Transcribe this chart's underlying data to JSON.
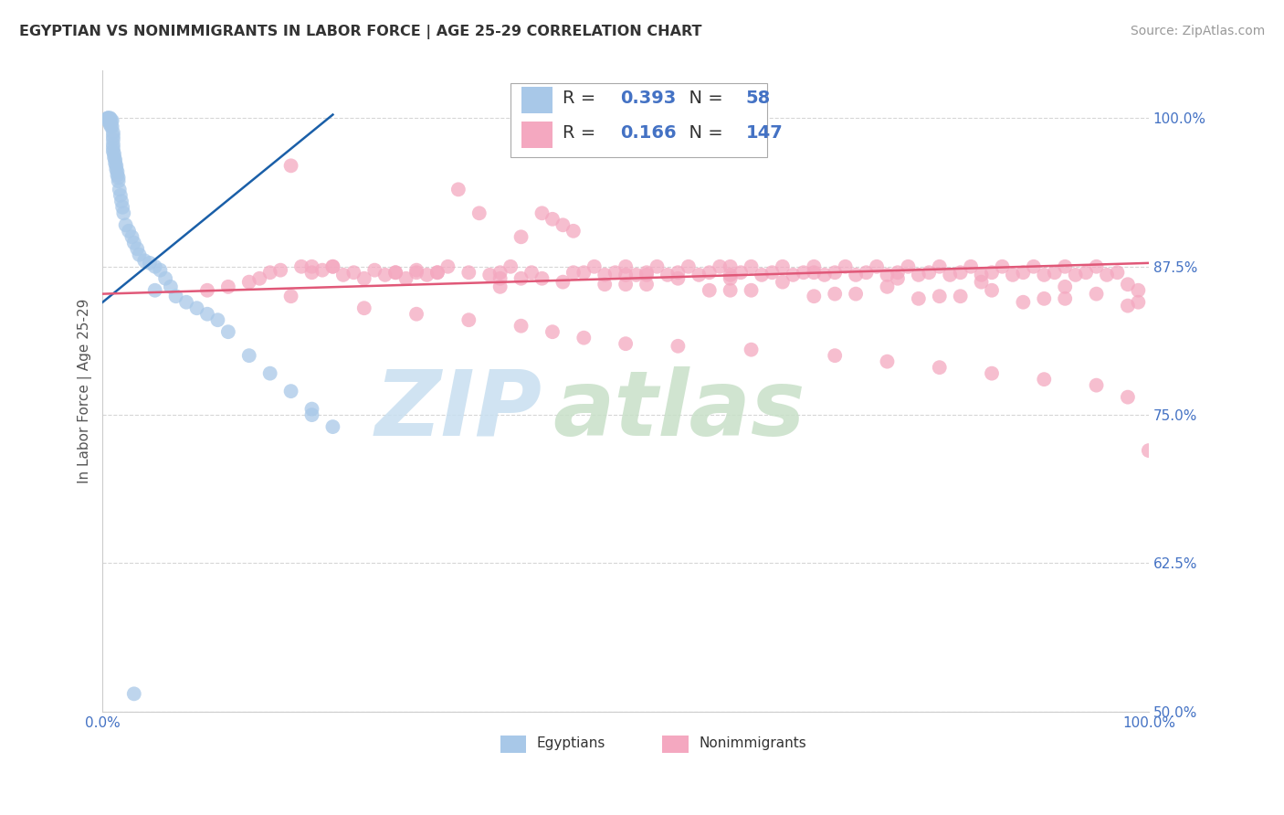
{
  "title": "EGYPTIAN VS NONIMMIGRANTS IN LABOR FORCE | AGE 25-29 CORRELATION CHART",
  "source": "Source: ZipAtlas.com",
  "ylabel": "In Labor Force | Age 25-29",
  "xlim": [
    0.0,
    1.0
  ],
  "ylim": [
    0.5,
    1.04
  ],
  "yticks": [
    0.5,
    0.625,
    0.75,
    0.875,
    1.0
  ],
  "ytick_labels": [
    "50.0%",
    "62.5%",
    "75.0%",
    "87.5%",
    "100.0%"
  ],
  "xtick_labels": [
    "0.0%",
    "",
    "",
    "",
    "",
    "",
    "",
    "",
    "",
    "",
    "100.0%"
  ],
  "legend_R_egyptian": "0.393",
  "legend_N_egyptian": "58",
  "legend_R_nonimmigrant": "0.166",
  "legend_N_nonimmigrant": "147",
  "egyptian_color": "#a8c8e8",
  "nonimmigrant_color": "#f4a8c0",
  "egyptian_line_color": "#1a5fa8",
  "nonimmigrant_line_color": "#e05878",
  "background_color": "#ffffff",
  "grid_color": "#cccccc",
  "title_color": "#333333",
  "axis_color": "#4472c4",
  "watermark_zip_color": "#c8dff0",
  "watermark_atlas_color": "#c8e0c8",
  "egy_line_x": [
    0.0,
    0.22
  ],
  "egy_line_y": [
    0.845,
    1.003
  ],
  "nim_line_x": [
    0.0,
    1.0
  ],
  "nim_line_y": [
    0.852,
    0.878
  ],
  "egy_x": [
    0.005,
    0.005,
    0.005,
    0.005,
    0.007,
    0.007,
    0.007,
    0.008,
    0.008,
    0.009,
    0.009,
    0.01,
    0.01,
    0.01,
    0.01,
    0.01,
    0.01,
    0.011,
    0.011,
    0.012,
    0.012,
    0.013,
    0.013,
    0.014,
    0.014,
    0.015,
    0.015,
    0.016,
    0.017,
    0.018,
    0.019,
    0.02,
    0.022,
    0.025,
    0.028,
    0.03,
    0.033,
    0.035,
    0.04,
    0.045,
    0.05,
    0.055,
    0.06,
    0.065,
    0.07,
    0.08,
    0.09,
    0.1,
    0.11,
    0.12,
    0.14,
    0.16,
    0.18,
    0.2,
    0.22,
    0.2,
    0.05,
    0.03
  ],
  "egy_y": [
    1.0,
    1.0,
    1.0,
    0.998,
    1.0,
    1.0,
    0.995,
    0.998,
    0.993,
    0.998,
    0.993,
    0.988,
    0.985,
    0.982,
    0.978,
    0.975,
    0.972,
    0.97,
    0.967,
    0.965,
    0.962,
    0.96,
    0.957,
    0.955,
    0.952,
    0.95,
    0.947,
    0.94,
    0.935,
    0.93,
    0.925,
    0.92,
    0.91,
    0.905,
    0.9,
    0.895,
    0.89,
    0.885,
    0.88,
    0.878,
    0.875,
    0.872,
    0.865,
    0.858,
    0.85,
    0.845,
    0.84,
    0.835,
    0.83,
    0.82,
    0.8,
    0.785,
    0.77,
    0.755,
    0.74,
    0.75,
    0.855,
    0.515
  ],
  "nim_x": [
    0.1,
    0.12,
    0.14,
    0.15,
    0.16,
    0.17,
    0.18,
    0.19,
    0.2,
    0.21,
    0.22,
    0.23,
    0.24,
    0.25,
    0.26,
    0.27,
    0.28,
    0.29,
    0.3,
    0.31,
    0.32,
    0.33,
    0.34,
    0.35,
    0.36,
    0.37,
    0.38,
    0.39,
    0.4,
    0.41,
    0.42,
    0.43,
    0.44,
    0.45,
    0.46,
    0.47,
    0.48,
    0.49,
    0.5,
    0.51,
    0.52,
    0.53,
    0.54,
    0.55,
    0.56,
    0.57,
    0.58,
    0.59,
    0.6,
    0.61,
    0.62,
    0.63,
    0.64,
    0.65,
    0.66,
    0.67,
    0.68,
    0.69,
    0.7,
    0.71,
    0.72,
    0.73,
    0.74,
    0.75,
    0.76,
    0.77,
    0.78,
    0.79,
    0.8,
    0.81,
    0.82,
    0.83,
    0.84,
    0.85,
    0.86,
    0.87,
    0.88,
    0.89,
    0.9,
    0.91,
    0.92,
    0.93,
    0.94,
    0.95,
    0.96,
    0.97,
    0.98,
    0.99,
    1.0,
    0.18,
    0.25,
    0.3,
    0.35,
    0.4,
    0.43,
    0.46,
    0.5,
    0.55,
    0.62,
    0.7,
    0.75,
    0.8,
    0.85,
    0.9,
    0.95,
    0.98,
    0.38,
    0.44,
    0.52,
    0.6,
    0.68,
    0.76,
    0.84,
    0.92,
    0.22,
    0.32,
    0.42,
    0.52,
    0.62,
    0.72,
    0.82,
    0.92,
    0.28,
    0.38,
    0.48,
    0.58,
    0.68,
    0.78,
    0.88,
    0.98,
    0.2,
    0.3,
    0.4,
    0.5,
    0.6,
    0.7,
    0.8,
    0.9,
    0.99,
    0.55,
    0.65,
    0.75,
    0.85,
    0.95,
    0.45,
    0.5,
    0.6
  ],
  "nim_y": [
    0.855,
    0.858,
    0.862,
    0.865,
    0.87,
    0.872,
    0.96,
    0.875,
    0.87,
    0.872,
    0.875,
    0.868,
    0.87,
    0.865,
    0.872,
    0.868,
    0.87,
    0.865,
    0.872,
    0.868,
    0.87,
    0.875,
    0.94,
    0.87,
    0.92,
    0.868,
    0.87,
    0.875,
    0.9,
    0.87,
    0.92,
    0.915,
    0.91,
    0.905,
    0.87,
    0.875,
    0.868,
    0.87,
    0.875,
    0.868,
    0.87,
    0.875,
    0.868,
    0.87,
    0.875,
    0.868,
    0.87,
    0.875,
    0.868,
    0.87,
    0.875,
    0.868,
    0.87,
    0.875,
    0.868,
    0.87,
    0.875,
    0.868,
    0.87,
    0.875,
    0.868,
    0.87,
    0.875,
    0.868,
    0.87,
    0.875,
    0.868,
    0.87,
    0.875,
    0.868,
    0.87,
    0.875,
    0.868,
    0.87,
    0.875,
    0.868,
    0.87,
    0.875,
    0.868,
    0.87,
    0.875,
    0.868,
    0.87,
    0.875,
    0.868,
    0.87,
    0.86,
    0.855,
    0.72,
    0.85,
    0.84,
    0.835,
    0.83,
    0.825,
    0.82,
    0.815,
    0.81,
    0.808,
    0.805,
    0.8,
    0.795,
    0.79,
    0.785,
    0.78,
    0.775,
    0.765,
    0.858,
    0.862,
    0.868,
    0.875,
    0.87,
    0.865,
    0.862,
    0.858,
    0.875,
    0.87,
    0.865,
    0.86,
    0.855,
    0.852,
    0.85,
    0.848,
    0.87,
    0.865,
    0.86,
    0.855,
    0.85,
    0.848,
    0.845,
    0.842,
    0.875,
    0.87,
    0.865,
    0.86,
    0.855,
    0.852,
    0.85,
    0.848,
    0.845,
    0.865,
    0.862,
    0.858,
    0.855,
    0.852,
    0.87,
    0.868,
    0.865
  ]
}
